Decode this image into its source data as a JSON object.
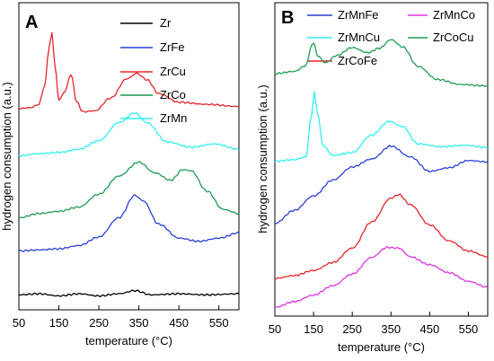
{
  "chart_data": [
    {
      "type": "line",
      "panel_label": "A",
      "xlabel": "temperature (°C)",
      "ylabel": "hydrogen consumption (a.u.)",
      "xlim": [
        50,
        600
      ],
      "x_ticks": [
        50,
        150,
        250,
        350,
        450,
        550
      ],
      "y_ticks_shown": false,
      "legend_position": "top-right",
      "series": [
        {
          "name": "Zr",
          "color": "#000000",
          "points": [
            [
              50,
              0.02
            ],
            [
              100,
              0.03
            ],
            [
              150,
              0.01
            ],
            [
              200,
              0.03
            ],
            [
              250,
              0.01
            ],
            [
              300,
              0.03
            ],
            [
              340,
              0.06
            ],
            [
              380,
              0.02
            ],
            [
              450,
              0.03
            ],
            [
              520,
              0.02
            ],
            [
              600,
              0.03
            ]
          ]
        },
        {
          "name": "ZrFe",
          "color": "#2b3fd6",
          "points": [
            [
              50,
              0.43
            ],
            [
              100,
              0.44
            ],
            [
              150,
              0.45
            ],
            [
              200,
              0.48
            ],
            [
              250,
              0.56
            ],
            [
              300,
              0.74
            ],
            [
              340,
              0.95
            ],
            [
              360,
              0.9
            ],
            [
              400,
              0.68
            ],
            [
              450,
              0.55
            ],
            [
              500,
              0.52
            ],
            [
              550,
              0.55
            ],
            [
              600,
              0.6
            ]
          ]
        },
        {
          "name": "ZrCu",
          "color": "#e8242a",
          "points": [
            [
              50,
              1.76
            ],
            [
              80,
              1.77
            ],
            [
              100,
              1.8
            ],
            [
              115,
              1.98
            ],
            [
              125,
              2.32
            ],
            [
              133,
              2.47
            ],
            [
              140,
              2.16
            ],
            [
              150,
              1.84
            ],
            [
              165,
              1.92
            ],
            [
              180,
              2.08
            ],
            [
              195,
              1.82
            ],
            [
              210,
              1.73
            ],
            [
              240,
              1.74
            ],
            [
              280,
              1.86
            ],
            [
              320,
              2.04
            ],
            [
              345,
              2.09
            ],
            [
              370,
              2.03
            ],
            [
              400,
              1.9
            ],
            [
              450,
              1.82
            ],
            [
              520,
              1.8
            ],
            [
              600,
              1.78
            ]
          ]
        },
        {
          "name": "ZrCo",
          "color": "#1e9c55",
          "points": [
            [
              50,
              0.74
            ],
            [
              100,
              0.78
            ],
            [
              150,
              0.8
            ],
            [
              200,
              0.84
            ],
            [
              250,
              0.96
            ],
            [
              300,
              1.13
            ],
            [
              350,
              1.26
            ],
            [
              390,
              1.16
            ],
            [
              430,
              1.09
            ],
            [
              460,
              1.19
            ],
            [
              480,
              1.18
            ],
            [
              520,
              0.99
            ],
            [
              560,
              0.82
            ],
            [
              600,
              0.78
            ]
          ]
        },
        {
          "name": "ZrMn",
          "color": "#2ef0f0",
          "points": [
            [
              50,
              1.32
            ],
            [
              100,
              1.34
            ],
            [
              150,
              1.35
            ],
            [
              200,
              1.38
            ],
            [
              250,
              1.46
            ],
            [
              300,
              1.63
            ],
            [
              340,
              1.72
            ],
            [
              370,
              1.63
            ],
            [
              420,
              1.45
            ],
            [
              480,
              1.4
            ],
            [
              540,
              1.43
            ],
            [
              600,
              1.38
            ]
          ]
        }
      ]
    },
    {
      "type": "line",
      "panel_label": "B",
      "xlabel": "temperature (°C)",
      "ylabel": "hydrogen consumption (a.u.)",
      "xlim": [
        50,
        600
      ],
      "x_ticks": [
        50,
        150,
        250,
        350,
        450,
        550
      ],
      "y_ticks_shown": false,
      "legend_position": "top",
      "series": [
        {
          "name": "ZrMnFe",
          "color": "#2b3fd6",
          "points": [
            [
              50,
              1.2
            ],
            [
              100,
              1.38
            ],
            [
              150,
              1.58
            ],
            [
              200,
              1.8
            ],
            [
              250,
              1.98
            ],
            [
              300,
              2.09
            ],
            [
              350,
              2.27
            ],
            [
              400,
              2.12
            ],
            [
              450,
              1.92
            ],
            [
              500,
              1.97
            ],
            [
              550,
              2.07
            ],
            [
              600,
              2.05
            ]
          ]
        },
        {
          "name": "ZrMnCu",
          "color": "#2ef0f0",
          "points": [
            [
              50,
              2.06
            ],
            [
              100,
              2.08
            ],
            [
              130,
              2.12
            ],
            [
              145,
              2.7
            ],
            [
              152,
              3.01
            ],
            [
              160,
              2.72
            ],
            [
              175,
              2.27
            ],
            [
              200,
              2.14
            ],
            [
              250,
              2.18
            ],
            [
              300,
              2.42
            ],
            [
              345,
              2.61
            ],
            [
              380,
              2.54
            ],
            [
              420,
              2.3
            ],
            [
              480,
              2.26
            ],
            [
              540,
              2.28
            ],
            [
              600,
              2.25
            ]
          ]
        },
        {
          "name": "ZrCoFe",
          "color": "#e8242a",
          "points": [
            [
              50,
              0.44
            ],
            [
              100,
              0.48
            ],
            [
              150,
              0.55
            ],
            [
              200,
              0.66
            ],
            [
              250,
              0.86
            ],
            [
              300,
              1.22
            ],
            [
              350,
              1.55
            ],
            [
              370,
              1.6
            ],
            [
              400,
              1.46
            ],
            [
              450,
              1.18
            ],
            [
              500,
              0.96
            ],
            [
              550,
              0.82
            ],
            [
              600,
              0.74
            ]
          ]
        },
        {
          "name": "ZrMnCo",
          "color": "#e033e0",
          "points": [
            [
              50,
              0.04
            ],
            [
              100,
              0.12
            ],
            [
              150,
              0.21
            ],
            [
              200,
              0.34
            ],
            [
              250,
              0.5
            ],
            [
              300,
              0.73
            ],
            [
              340,
              0.87
            ],
            [
              370,
              0.86
            ],
            [
              400,
              0.74
            ],
            [
              450,
              0.63
            ],
            [
              500,
              0.52
            ],
            [
              550,
              0.4
            ],
            [
              600,
              0.32
            ]
          ]
        },
        {
          "name": "ZrCoCu",
          "color": "#1e9c55",
          "points": [
            [
              50,
              3.27
            ],
            [
              100,
              3.3
            ],
            [
              130,
              3.38
            ],
            [
              145,
              3.65
            ],
            [
              150,
              3.7
            ],
            [
              160,
              3.52
            ],
            [
              180,
              3.42
            ],
            [
              210,
              3.52
            ],
            [
              250,
              3.63
            ],
            [
              290,
              3.56
            ],
            [
              320,
              3.62
            ],
            [
              350,
              3.74
            ],
            [
              380,
              3.64
            ],
            [
              420,
              3.37
            ],
            [
              470,
              3.19
            ],
            [
              530,
              3.12
            ],
            [
              600,
              3.1
            ]
          ]
        }
      ]
    }
  ]
}
